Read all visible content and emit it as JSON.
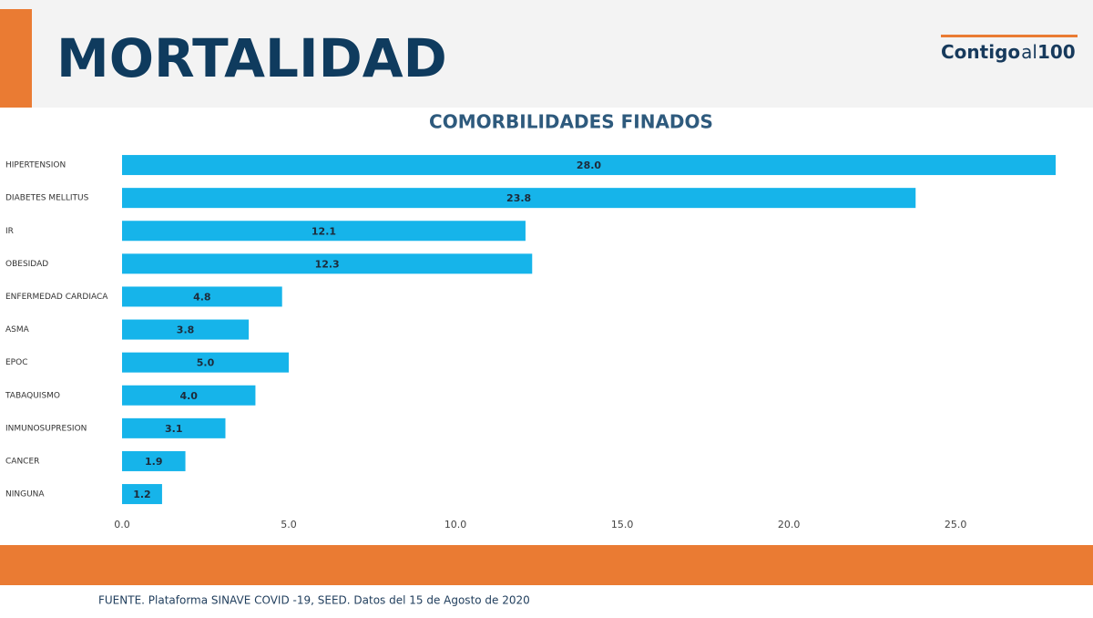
{
  "header": {
    "title": "MORTALIDAD",
    "logo": [
      "Contigo",
      "al",
      "100"
    ]
  },
  "chart_data": {
    "type": "hbar",
    "title": "COMORBILIDADES FINADOS",
    "categories": [
      "HIPERTENSION",
      "DIABETES MELLITUS",
      "IR",
      "OBESIDAD",
      "ENFERMEDAD CARDIACA",
      "ASMA",
      "EPOC",
      "TABAQUISMO",
      "INMUNOSUPRESION",
      "CANCER",
      "NINGUNA"
    ],
    "values": [
      28.0,
      23.8,
      12.1,
      12.3,
      4.8,
      3.8,
      5.0,
      4.0,
      3.1,
      1.9,
      1.2
    ],
    "value_labels": [
      "28.0",
      "23.8",
      "12.1",
      "12.3",
      "4.8",
      "3.8",
      "5.0",
      "4.0",
      "3.1",
      "1.9",
      "1.2"
    ],
    "color": "#16b4ea",
    "xlim": [
      0,
      28
    ],
    "xticks": [
      {
        "value": 0,
        "label": "0.0"
      },
      {
        "value": 5,
        "label": "5.0"
      },
      {
        "value": 10,
        "label": "10.0"
      },
      {
        "value": 15,
        "label": "15.0"
      },
      {
        "value": 20,
        "label": "20.0"
      },
      {
        "value": 25,
        "label": "25.0"
      }
    ]
  },
  "footer": {
    "source": "FUENTE. Plataforma SINAVE COVID -19, SEED. Datos del 15 de Agosto de 2020"
  }
}
